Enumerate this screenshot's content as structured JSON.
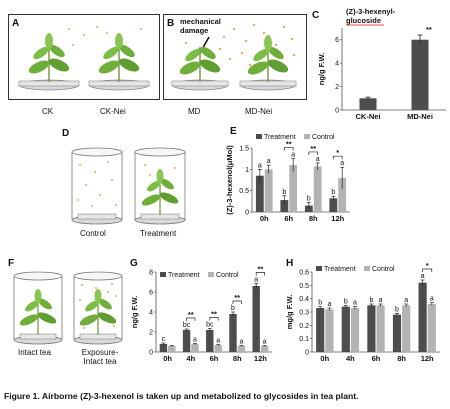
{
  "figure": {
    "caption": "Figure 1. Airborne (Z)-3-hexenol is taken up and metabolized to glycosides in tea plant."
  },
  "panelA": {
    "label": "A",
    "plants": [
      "CK",
      "CK-Nei"
    ]
  },
  "panelB": {
    "label": "B",
    "plants": [
      "MD",
      "MD-Nei"
    ],
    "annotation": "mechanical damage"
  },
  "panelD": {
    "label": "D",
    "containers": [
      "Control",
      "Treatment"
    ]
  },
  "panelF": {
    "label": "F",
    "containers": [
      "Intact tea",
      "Exposure-Intact tea"
    ]
  },
  "colors": {
    "treatment": "#4d4d4d",
    "control": "#b3b3b3",
    "dots": "#f2a26b",
    "leaf": "#6fae3a",
    "stem": "#7a9a45",
    "dish": "#d9d9d9"
  },
  "chart_data": [
    {
      "panel": "C",
      "type": "bar",
      "title": "(Z)-3-hexenyl-glucoside",
      "ylabel": "ng/g F.W.",
      "categories": [
        "CK-Nei",
        "MD-Nei"
      ],
      "values": [
        1.0,
        6.0
      ],
      "errors": [
        0.1,
        0.4
      ],
      "ylim": [
        0,
        7
      ],
      "yticks": [
        0,
        2,
        4,
        6
      ],
      "significance": [
        "",
        "**"
      ],
      "legend": "none",
      "grid": false
    },
    {
      "panel": "E",
      "type": "bar",
      "ylabel": "(Z)-3-hexenol(μMol)",
      "categories": [
        "0h",
        "6h",
        "8h",
        "12h"
      ],
      "series": [
        {
          "name": "Treatment",
          "values": [
            0.85,
            0.28,
            0.15,
            0.32
          ],
          "errors": [
            0.15,
            0.1,
            0.07,
            0.05
          ],
          "letters": [
            "a",
            "b",
            "b",
            "b"
          ]
        },
        {
          "name": "Control",
          "values": [
            1.0,
            1.1,
            1.07,
            0.8
          ],
          "errors": [
            0.1,
            0.15,
            0.08,
            0.25
          ],
          "letters": [
            "a",
            "a",
            "a",
            "a"
          ]
        }
      ],
      "significance": [
        "",
        "**",
        "**",
        "*"
      ],
      "ylim": [
        0,
        1.5
      ],
      "yticks": [
        0,
        0.5,
        1,
        1.5
      ],
      "yticklabels": [
        "0",
        "0.5",
        "1",
        "1.5"
      ],
      "legend": "top",
      "grid": false
    },
    {
      "panel": "G",
      "type": "bar",
      "ylabel": "ng/g F.W.",
      "categories": [
        "0h",
        "4h",
        "6h",
        "8h",
        "12h"
      ],
      "series": [
        {
          "name": "Treatment",
          "values": [
            0.8,
            2.2,
            2.2,
            3.8,
            6.6
          ],
          "errors": [
            0.1,
            0.1,
            0.15,
            0.2,
            0.25
          ],
          "letters": [
            "c",
            "bc",
            "bc",
            "b",
            "a"
          ]
        },
        {
          "name": "Control",
          "values": [
            0.6,
            0.8,
            0.7,
            0.6,
            0.6
          ],
          "errors": [
            0.05,
            0.05,
            0.05,
            0.05,
            0.05
          ],
          "letters": [
            "",
            "a",
            "a",
            "a",
            "a"
          ]
        }
      ],
      "significance": [
        "",
        "**",
        "**",
        "**",
        "**"
      ],
      "ylim": [
        0,
        8
      ],
      "yticks": [
        0,
        2,
        4,
        6,
        8
      ],
      "legend": "top",
      "grid": false
    },
    {
      "panel": "H",
      "type": "bar",
      "ylabel": "mg/g F.W.",
      "categories": [
        "0h",
        "4h",
        "6h",
        "8h",
        "12h"
      ],
      "series": [
        {
          "name": "Treatment",
          "values": [
            0.33,
            0.34,
            0.35,
            0.28,
            0.52
          ],
          "errors": [
            0.01,
            0.01,
            0.01,
            0.01,
            0.02
          ],
          "letters": [
            "b",
            "b",
            "b",
            "b",
            "a"
          ]
        },
        {
          "name": "Control",
          "values": [
            0.32,
            0.33,
            0.35,
            0.35,
            0.36
          ],
          "errors": [
            0.01,
            0.01,
            0.01,
            0.01,
            0.01
          ],
          "letters": [
            "a",
            "a",
            "a",
            "a",
            "a"
          ]
        }
      ],
      "significance": [
        "",
        "",
        "",
        "",
        "*"
      ],
      "ylim": [
        0,
        0.6
      ],
      "yticks": [
        0,
        0.1,
        0.2,
        0.3,
        0.4,
        0.5,
        0.6
      ],
      "yticklabels": [
        "0",
        "0.1",
        "0.2",
        "0.3",
        "0.4",
        "0.5",
        "0.6"
      ],
      "legend": "top",
      "grid": false
    }
  ]
}
